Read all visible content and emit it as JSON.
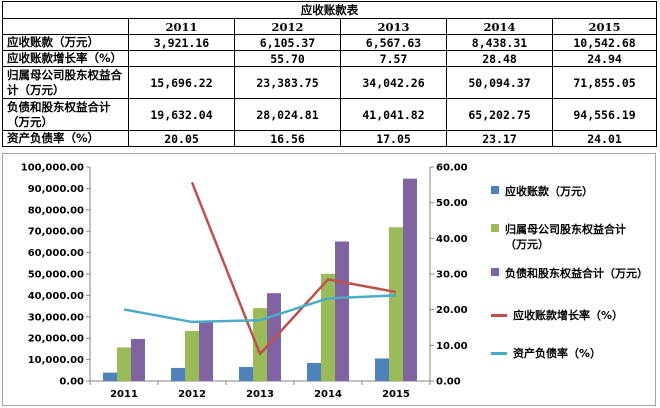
{
  "table": {
    "title": "应收账款表",
    "years": [
      "2011",
      "2012",
      "2013",
      "2014",
      "2015"
    ],
    "rows": [
      {
        "label": "应收账款（万元）",
        "values": [
          "3,921.16",
          "6,105.37",
          "6,567.63",
          "8,438.31",
          "10,542.68"
        ]
      },
      {
        "label": "应收账款增长率（%）",
        "values": [
          "",
          "55.70",
          "7.57",
          "28.48",
          "24.94"
        ]
      },
      {
        "label": "归属母公司股东权益合计（万元）",
        "values": [
          "15,696.22",
          "23,383.75",
          "34,042.26",
          "50,094.37",
          "71,855.05"
        ]
      },
      {
        "label": "负债和股东权益合计（万元）",
        "values": [
          "19,632.04",
          "28,024.81",
          "41,041.82",
          "65,202.75",
          "94,556.19"
        ]
      },
      {
        "label": "资产负债率（%）",
        "values": [
          "20.05",
          "16.56",
          "17.05",
          "23.17",
          "24.01"
        ]
      }
    ]
  },
  "chart_data": {
    "type": "bar",
    "categories": [
      "2011",
      "2012",
      "2013",
      "2014",
      "2015"
    ],
    "series": [
      {
        "name": "应收账款（万元）",
        "kind": "bar",
        "axis": "left",
        "color": "#4f81bd",
        "values": [
          3921.16,
          6105.37,
          6567.63,
          8438.31,
          10542.68
        ]
      },
      {
        "name": "归属母公司股东权益合计（万元）",
        "kind": "bar",
        "axis": "left",
        "color": "#9bbb59",
        "values": [
          15696.22,
          23383.75,
          34042.26,
          50094.37,
          71855.05
        ]
      },
      {
        "name": "负债和股东权益合计（万元）",
        "kind": "bar",
        "axis": "left",
        "color": "#8064a2",
        "values": [
          19632.04,
          28024.81,
          41041.82,
          65202.75,
          94556.19
        ]
      },
      {
        "name": "应收账款增长率（%）",
        "kind": "line",
        "axis": "right",
        "color": "#c0504d",
        "values": [
          null,
          55.7,
          7.57,
          28.48,
          24.94
        ]
      },
      {
        "name": "资产负债率（%）",
        "kind": "line",
        "axis": "right",
        "color": "#4bacc6",
        "values": [
          20.05,
          16.56,
          17.05,
          23.17,
          24.01
        ]
      }
    ],
    "y_left": {
      "min": 0,
      "max": 100000,
      "step": 10000,
      "ticks": [
        "0.00",
        "10,000.00",
        "20,000.00",
        "30,000.00",
        "40,000.00",
        "50,000.00",
        "60,000.00",
        "70,000.00",
        "80,000.00",
        "90,000.00",
        "100,000.00"
      ]
    },
    "y_right": {
      "min": 0,
      "max": 60,
      "step": 10,
      "ticks": [
        "0.00",
        "10.00",
        "20.00",
        "30.00",
        "40.00",
        "50.00",
        "60.00"
      ]
    },
    "grid": false,
    "legend": "right"
  }
}
